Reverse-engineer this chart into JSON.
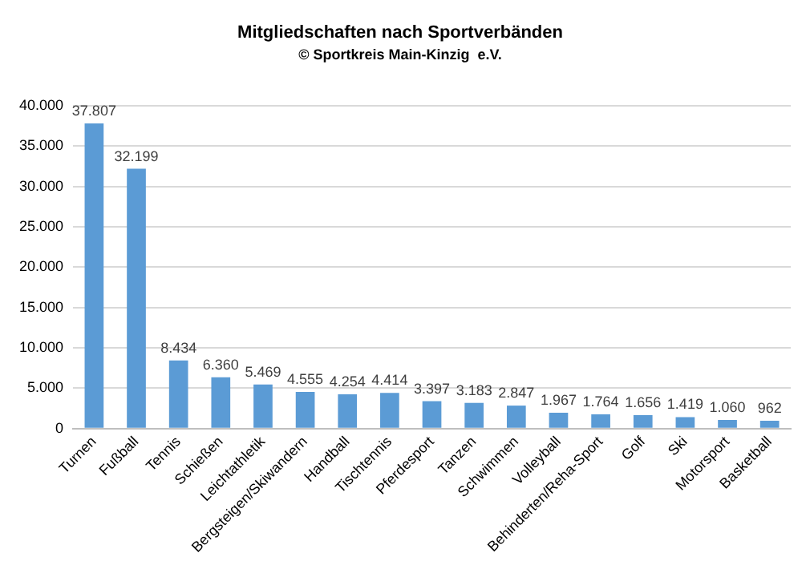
{
  "chart_data": {
    "type": "bar",
    "title": "Mitgliedschaften nach Sportverbänden",
    "subtitle": "© Sportkreis Main-Kinzig  e.V.",
    "categories": [
      "Turnen",
      "Fußball",
      "Tennis",
      "Schießen",
      "Leichtathletik",
      "Bergsteigen/Skiwandern",
      "Handball",
      "Tischtennis",
      "Pferdesport",
      "Tanzen",
      "Schwimmen",
      "Volleyball",
      "Behinderten/Reha-Sport",
      "Golf",
      "Ski",
      "Motorsport",
      "Basketball"
    ],
    "values": [
      37807,
      32199,
      8434,
      6360,
      5469,
      4555,
      4254,
      4414,
      3397,
      3183,
      2847,
      1967,
      1764,
      1656,
      1419,
      1060,
      962
    ],
    "value_labels": [
      "37.807",
      "32.199",
      "8.434",
      "6.360",
      "5.469",
      "4.555",
      "4.254",
      "4.414",
      "3.397",
      "3.183",
      "2.847",
      "1.967",
      "1.764",
      "1.656",
      "1.419",
      "1.060",
      "962"
    ],
    "color": "#5b9bd5",
    "ylim": [
      0,
      40000
    ],
    "yticks": [
      0,
      {
        "value": 5000,
        "label": "5.000"
      },
      {
        "value": 10000,
        "label": "10.000"
      },
      {
        "value": 15000,
        "label": "15.000"
      },
      {
        "value": 20000,
        "label": "20.000"
      },
      {
        "value": 25000,
        "label": "25.000"
      },
      {
        "value": 30000,
        "label": "30.000"
      },
      {
        "value": 35000,
        "label": "35.000"
      },
      {
        "value": 40000,
        "label": "40.000"
      }
    ],
    "grid": "y"
  }
}
